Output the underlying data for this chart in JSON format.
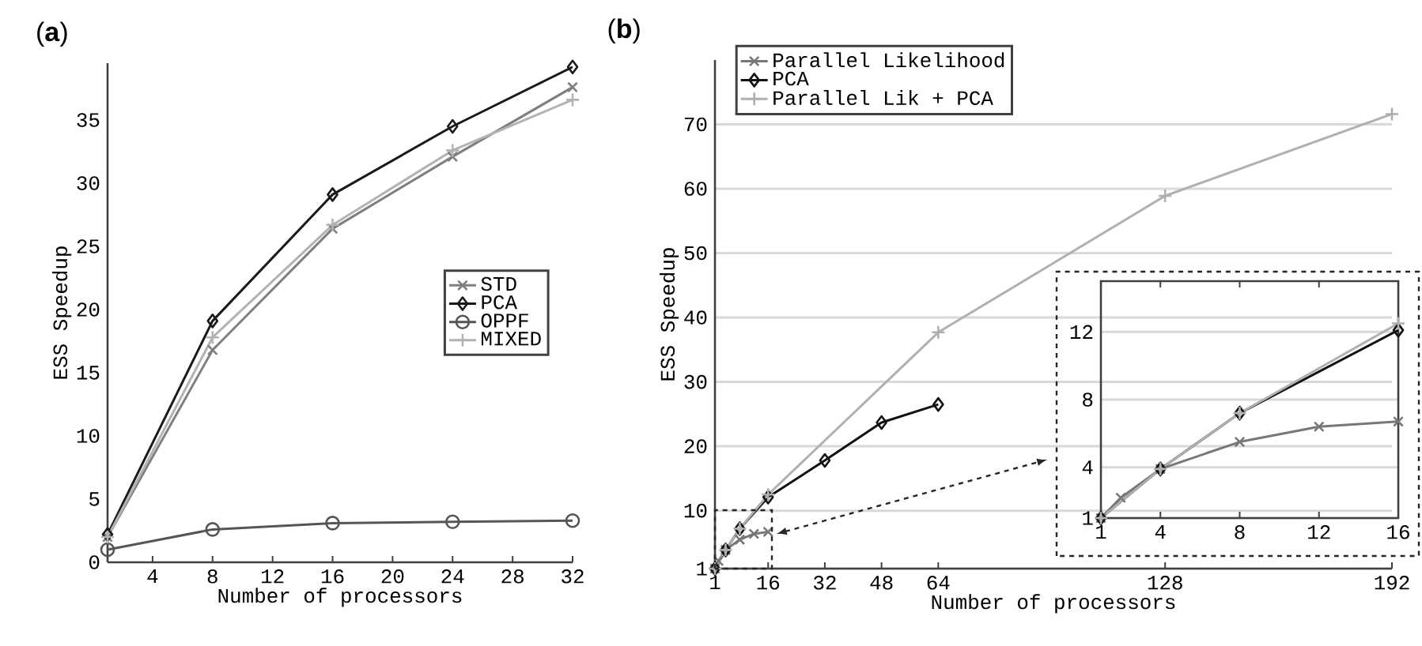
{
  "chart_data": [
    {
      "type": "line",
      "title": "(**a**)",
      "xlabel": "Number of processors",
      "ylabel": "ESS Speedup",
      "x": [
        1,
        8,
        16,
        24,
        32
      ],
      "xlim": [
        1,
        32
      ],
      "ylim": [
        0,
        39.5
      ],
      "xticks": [
        4,
        8,
        12,
        16,
        20,
        24,
        28,
        32
      ],
      "yticks": [
        0,
        5,
        10,
        15,
        20,
        25,
        30,
        35
      ],
      "grid": false,
      "legend": "center right",
      "line_style": "solid",
      "series": [
        {
          "name": "STD",
          "color": "#7f7f7f",
          "marker": "cross",
          "values": [
            2.0,
            16.8,
            26.4,
            32.1,
            37.6
          ]
        },
        {
          "name": "PCA",
          "color": "#1a1a1a",
          "marker": "diamond",
          "values": [
            2.2,
            19.1,
            29.1,
            34.5,
            39.2
          ]
        },
        {
          "name": "OPPF",
          "color": "#555555",
          "marker": "circle",
          "values": [
            1.0,
            2.6,
            3.1,
            3.2,
            3.3
          ]
        },
        {
          "name": "MIXED",
          "color": "#b3b3b3",
          "marker": "plus",
          "values": [
            2.0,
            17.8,
            26.7,
            32.6,
            36.6
          ]
        }
      ]
    },
    {
      "type": "line",
      "title": "(**b**)",
      "xlabel": "Number of processors",
      "ylabel": "ESS Speedup",
      "xlim": [
        1,
        192
      ],
      "ylim": [
        1,
        80
      ],
      "xticks": [
        1,
        16,
        32,
        48,
        64,
        128,
        192
      ],
      "yticks": [
        1,
        10,
        20,
        30,
        40,
        50,
        60,
        70
      ],
      "grid": "y",
      "legend": "top left",
      "line_style": "solid",
      "series": [
        {
          "name": "Parallel Likelihood",
          "color": "#777777",
          "marker": "cross",
          "x": [
            1,
            2,
            4,
            8,
            12,
            16
          ],
          "values": [
            1,
            2.2,
            3.9,
            5.5,
            6.4,
            6.7
          ]
        },
        {
          "name": "PCA",
          "color": "#111111",
          "marker": "diamond",
          "x": [
            1,
            4,
            8,
            16,
            32,
            48,
            64
          ],
          "values": [
            1,
            3.9,
            7.2,
            12.1,
            17.8,
            23.7,
            26.5
          ]
        },
        {
          "name": "Parallel Lik + PCA",
          "color": "#b0b0b0",
          "marker": "plus",
          "x": [
            1,
            4,
            8,
            16,
            64,
            128,
            192
          ],
          "values": [
            1,
            3.9,
            7.2,
            12.5,
            37.7,
            58.9,
            71.6
          ]
        }
      ]
    },
    {
      "type": "line",
      "xlim": [
        1,
        16
      ],
      "ylim": [
        1,
        15
      ],
      "xticks": [
        1,
        4,
        8,
        12,
        16
      ],
      "yticks": [
        1,
        4,
        8,
        12
      ],
      "grid": "y",
      "line_style": "solid",
      "series": [
        {
          "color": "#777777",
          "marker": "cross",
          "x": [
            1,
            2,
            4,
            8,
            12,
            16
          ],
          "values": [
            1,
            2.2,
            3.9,
            5.5,
            6.4,
            6.7
          ]
        },
        {
          "color": "#111111",
          "marker": "diamond",
          "x": [
            1,
            4,
            8,
            16
          ],
          "values": [
            1,
            3.9,
            7.2,
            12.1
          ]
        },
        {
          "color": "#b0b0b0",
          "marker": "plus",
          "x": [
            1,
            4,
            8,
            16
          ],
          "values": [
            1,
            3.9,
            7.2,
            12.5
          ]
        }
      ]
    }
  ]
}
